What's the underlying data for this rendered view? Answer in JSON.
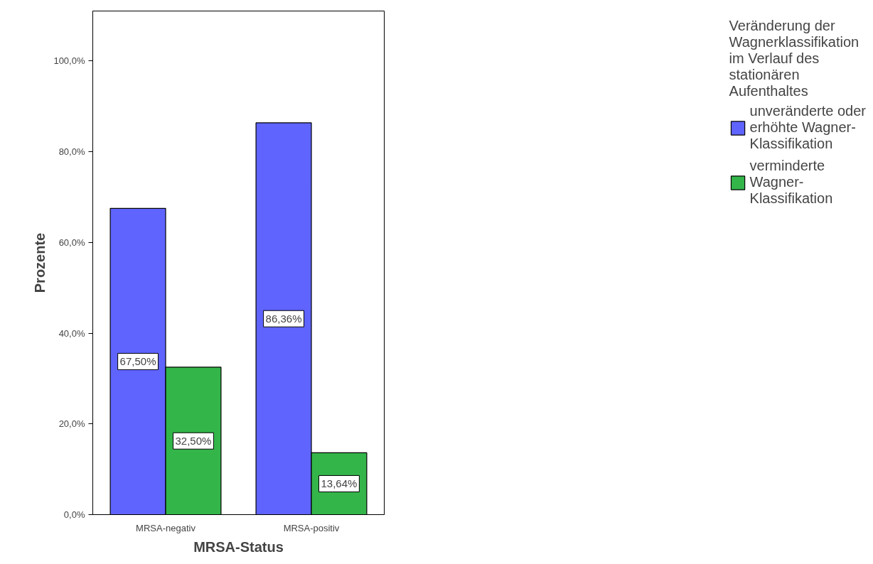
{
  "chart_data": {
    "type": "bar",
    "xlabel": "MRSA-Status",
    "ylabel": "Prozente",
    "legend_title": "Veränderung der Wagnerklassifikation im Verlauf des stationären Aufenthaltes",
    "categories": [
      "MRSA-negativ",
      "MRSA-positiv"
    ],
    "series": [
      {
        "name": "unveränderte oder erhöhte Wagner-Klassifikation",
        "color": "#5f64ff",
        "values": [
          67.5,
          86.36
        ],
        "value_labels": [
          "67,50%",
          "86,36%"
        ]
      },
      {
        "name": "verminderte Wagner-Klassifikation",
        "color": "#33b54a",
        "values": [
          32.5,
          13.64
        ],
        "value_labels": [
          "32,50%",
          "13,64%"
        ]
      }
    ],
    "ylim": [
      0,
      111
    ],
    "yticks": [
      {
        "value": 0,
        "label": "0,0%"
      },
      {
        "value": 20,
        "label": "20,0%"
      },
      {
        "value": 40,
        "label": "40,0%"
      },
      {
        "value": 60,
        "label": "60,0%"
      },
      {
        "value": 80,
        "label": "80,0%"
      },
      {
        "value": 100,
        "label": "100,0%"
      }
    ],
    "grid": false,
    "legend": "right"
  }
}
